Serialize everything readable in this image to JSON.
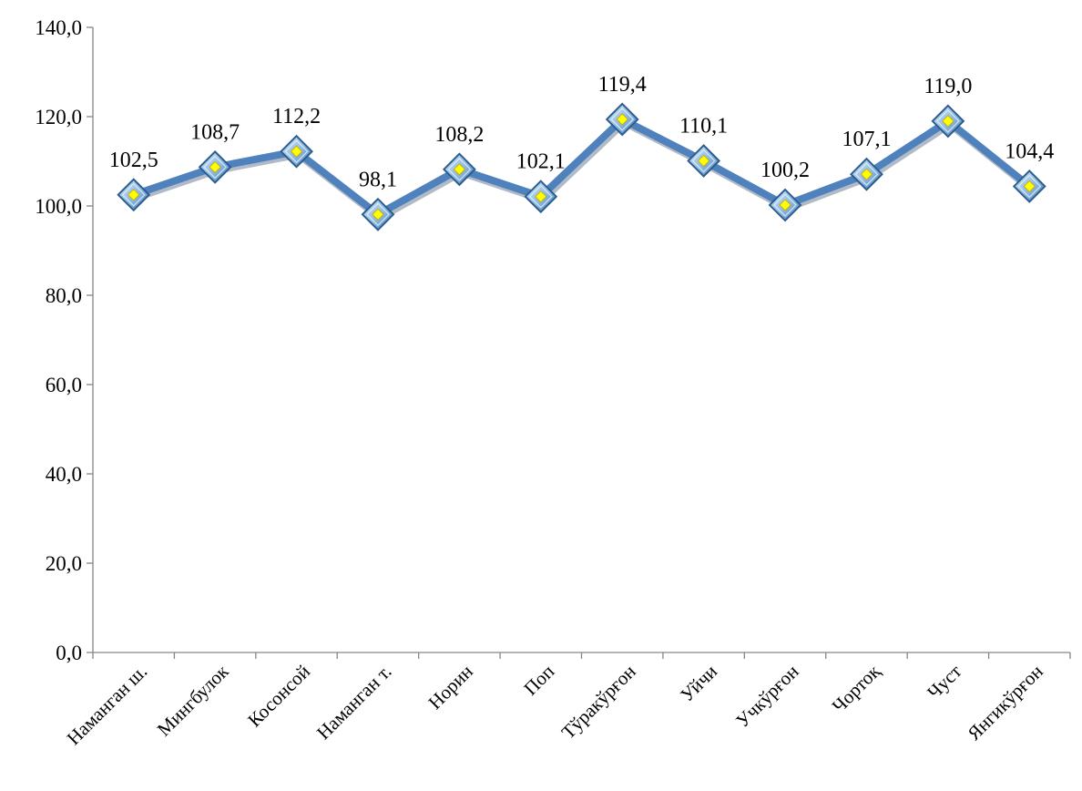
{
  "chart_data": {
    "type": "line",
    "title": "",
    "xlabel": "",
    "ylabel": "",
    "ylim": [
      0,
      140
    ],
    "yticks": [
      0,
      20,
      40,
      60,
      80,
      100,
      120,
      140
    ],
    "ytick_labels": [
      "0,0",
      "20,0",
      "40,0",
      "60,0",
      "80,0",
      "100,0",
      "120,0",
      "140,0"
    ],
    "grid": false,
    "legend": "none",
    "categories": [
      "Наманган ш.",
      "Мингбулок",
      "Косонсой",
      "Наманган т.",
      "Норин",
      "Поп",
      "Тўракўрғон",
      "Уйчи",
      "Учкўрғон",
      "Чортоқ",
      "Чуст",
      "Янгикўрғон"
    ],
    "series": [
      {
        "values": [
          102.5,
          108.7,
          112.2,
          98.1,
          108.2,
          102.1,
          119.4,
          110.1,
          100.2,
          107.1,
          119.0,
          104.4
        ],
        "labels": [
          "102,5",
          "108,7",
          "112,2",
          "98,1",
          "108,2",
          "102,1",
          "119,4",
          "110,1",
          "100,2",
          "107,1",
          "119,0",
          "104,4"
        ],
        "color": "#4f81bd",
        "marker_color": "#9dc3e6",
        "marker_center_color": "#ffff00"
      }
    ]
  }
}
